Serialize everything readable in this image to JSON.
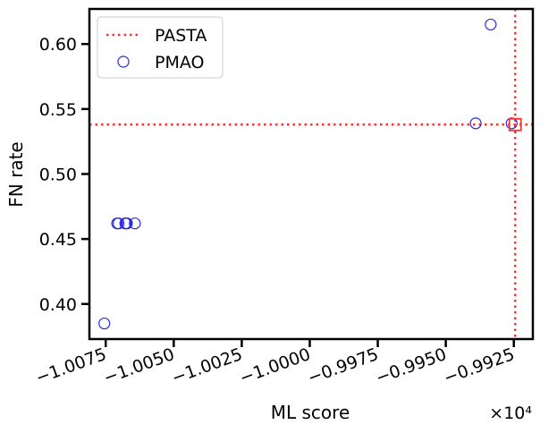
{
  "chart_data": {
    "type": "scatter",
    "xlabel": "ML score",
    "ylabel": "FN rate",
    "x_offset_label": "×10⁴",
    "xlim": [
      -10.081,
      -9.918
    ],
    "ylim": [
      0.373,
      0.627
    ],
    "x_ticks": [
      -10.075,
      -10.05,
      -10.025,
      -10.0,
      -9.975,
      -9.95,
      -9.925
    ],
    "x_tick_labels": [
      "−1.0075",
      "−1.0050",
      "−1.0025",
      "−1.0000",
      "−0.9975",
      "−0.9950",
      "−0.9925"
    ],
    "y_ticks": [
      0.4,
      0.45,
      0.5,
      0.55,
      0.6
    ],
    "y_tick_labels": [
      "0.40",
      "0.45",
      "0.50",
      "0.55",
      "0.60"
    ],
    "legend_position": "top-left",
    "series": [
      {
        "name": "PASTA",
        "kind": "reference-lines",
        "color": "#ff3030",
        "style": "dotted",
        "x": -9.9245,
        "y": 0.538
      },
      {
        "name": "PMAO",
        "kind": "scatter",
        "color": "#2a2ae0",
        "marker": "open-circle",
        "points": [
          {
            "x": -10.0755,
            "y": 0.385
          },
          {
            "x": -10.0708,
            "y": 0.462
          },
          {
            "x": -10.0703,
            "y": 0.462
          },
          {
            "x": -10.0678,
            "y": 0.462
          },
          {
            "x": -10.0675,
            "y": 0.462
          },
          {
            "x": -10.0672,
            "y": 0.462
          },
          {
            "x": -10.0643,
            "y": 0.462
          },
          {
            "x": -9.9335,
            "y": 0.615
          },
          {
            "x": -9.939,
            "y": 0.539
          },
          {
            "x": -9.9258,
            "y": 0.539
          }
        ]
      }
    ],
    "highlight": {
      "x": -9.9245,
      "y": 0.538,
      "marker": "open-square",
      "color": "#ff3030"
    }
  }
}
